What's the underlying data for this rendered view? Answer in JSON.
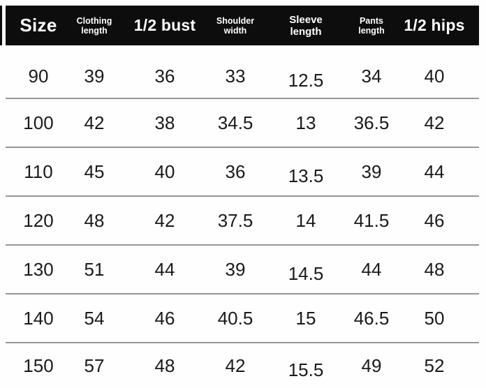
{
  "table": {
    "columns": [
      {
        "id": "size",
        "label": "Size",
        "lines": [
          "Size"
        ],
        "emphasis": "xl"
      },
      {
        "id": "clothing-length",
        "label": "Clothing length",
        "lines": [
          "Clothing",
          "length"
        ],
        "emphasis": "sm"
      },
      {
        "id": "half-bust",
        "label": "1/2 bust",
        "lines": [
          "1/2 bust"
        ],
        "emphasis": "lg"
      },
      {
        "id": "shoulder-width",
        "label": "Shoulder width",
        "lines": [
          "Shoulder",
          "width"
        ],
        "emphasis": "sm"
      },
      {
        "id": "sleeve-length",
        "label": "Sleeve length",
        "lines": [
          "Sleeve",
          "length"
        ],
        "emphasis": "md"
      },
      {
        "id": "pants-length",
        "label": "Pants length",
        "lines": [
          "Pants",
          "length"
        ],
        "emphasis": "sm"
      },
      {
        "id": "half-hips",
        "label": "1/2 hips",
        "lines": [
          "1/2 hips"
        ],
        "emphasis": "lg"
      }
    ],
    "rows": [
      [
        "90",
        "39",
        "36",
        "33",
        "12.5",
        "34",
        "40"
      ],
      [
        "100",
        "42",
        "38",
        "34.5",
        "13",
        "36.5",
        "42"
      ],
      [
        "110",
        "45",
        "40",
        "36",
        "13.5",
        "39",
        "44"
      ],
      [
        "120",
        "48",
        "42",
        "37.5",
        "14",
        "41.5",
        "46"
      ],
      [
        "130",
        "51",
        "44",
        "39",
        "14.5",
        "44",
        "48"
      ],
      [
        "140",
        "54",
        "46",
        "40.5",
        "15",
        "46.5",
        "50"
      ],
      [
        "150",
        "57",
        "48",
        "42",
        "15.5",
        "49",
        "52"
      ]
    ]
  },
  "colors": {
    "header_background": "#0d0d0d",
    "header_text": "#ffffff",
    "divider": "#96969a",
    "cell_text": "#1a1a1a",
    "page_background": "#fefefe"
  }
}
